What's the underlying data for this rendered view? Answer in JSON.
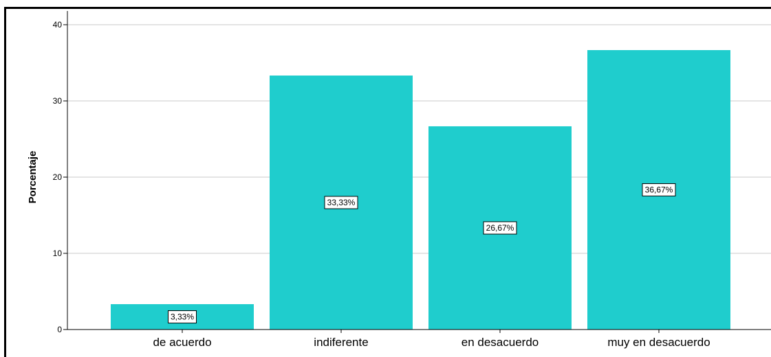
{
  "chart_data": {
    "type": "bar",
    "categories": [
      "de acuerdo",
      "indiferente",
      "en desacuerdo",
      "muy en desacuerdo"
    ],
    "values": [
      3.33,
      33.33,
      26.67,
      36.67
    ],
    "data_labels": [
      "3,33%",
      "33,33%",
      "26,67%",
      "36,67%"
    ],
    "title": "",
    "xlabel": "",
    "ylabel": "Porcentaje",
    "ylim": [
      0,
      40
    ],
    "yticks": [
      0,
      10,
      20,
      30,
      40
    ],
    "ytick_labels": [
      "0",
      "10",
      "20",
      "30",
      "40"
    ],
    "grid": true,
    "colors": {
      "bar": "#1fcdcd",
      "grid": "#c8c8c8",
      "axis": "#000000"
    }
  }
}
